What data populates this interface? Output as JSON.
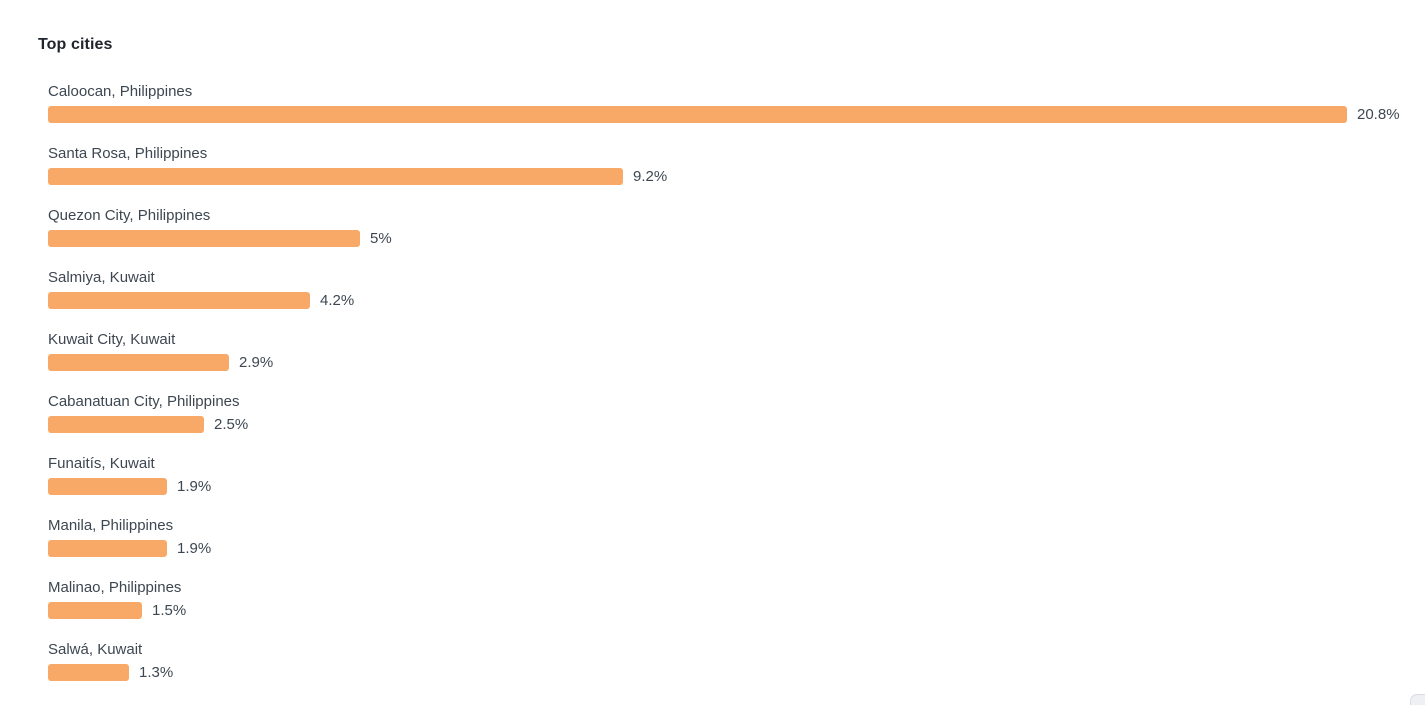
{
  "header": {
    "title": "Top cities"
  },
  "colors": {
    "bar": "#f8a968",
    "text": "#3d4751",
    "title_text": "#20252d",
    "background": "#ffffff"
  },
  "chart_data": {
    "type": "bar",
    "orientation": "horizontal",
    "title": "Top cities",
    "xlabel": "",
    "ylabel": "",
    "xlim": [
      0,
      20.8
    ],
    "grid": false,
    "legend": "none",
    "bar_color": "#f8a968",
    "value_suffix": "%",
    "categories": [
      "Caloocan, Philippines",
      "Santa Rosa, Philippines",
      "Quezon City, Philippines",
      "Salmiya, Kuwait",
      "Kuwait City, Kuwait",
      "Cabanatuan City, Philippines",
      "Funaitís, Kuwait",
      "Manila, Philippines",
      "Malinao, Philippines",
      "Salwá, Kuwait"
    ],
    "values": [
      20.8,
      9.2,
      5,
      4.2,
      2.9,
      2.5,
      1.9,
      1.9,
      1.5,
      1.3
    ],
    "value_labels": [
      "20.8%",
      "9.2%",
      "5%",
      "4.2%",
      "2.9%",
      "2.5%",
      "1.9%",
      "1.9%",
      "1.5%",
      "1.3%"
    ]
  }
}
